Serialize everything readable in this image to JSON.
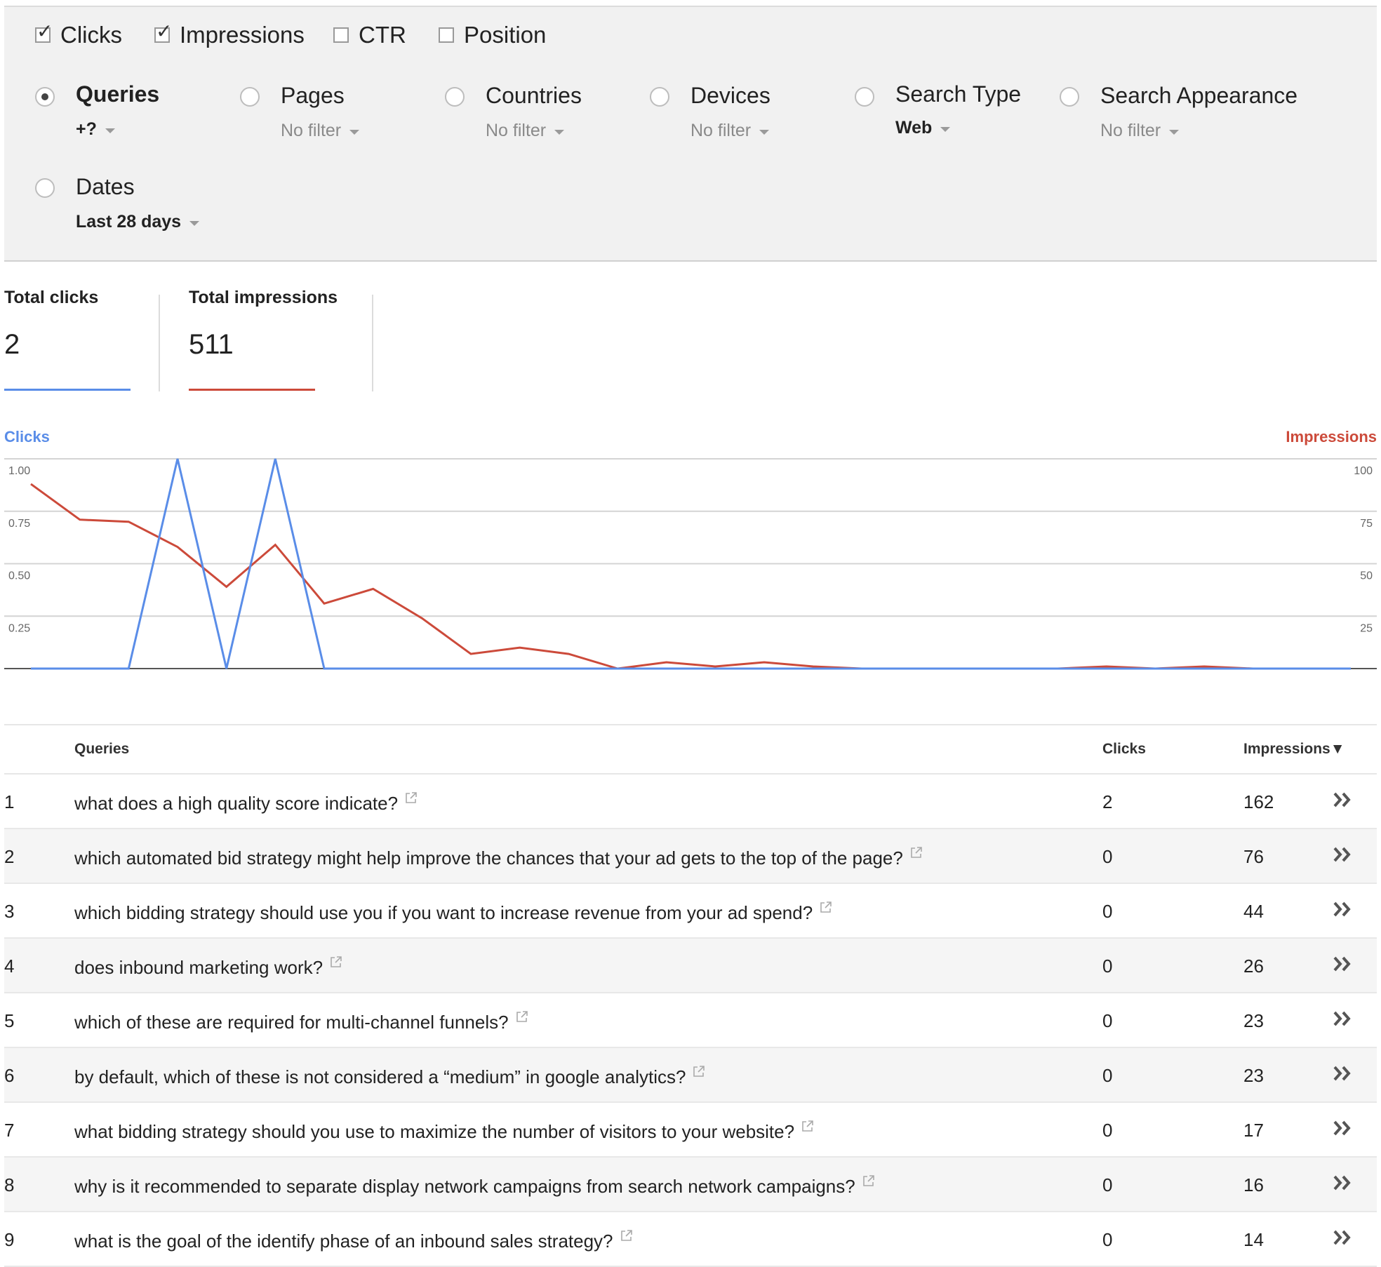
{
  "metrics": [
    {
      "label": "Clicks",
      "checked": true
    },
    {
      "label": "Impressions",
      "checked": true
    },
    {
      "label": "CTR",
      "checked": false
    },
    {
      "label": "Position",
      "checked": false
    }
  ],
  "dimensions": [
    {
      "label": "Queries",
      "filter": "+?",
      "selected": true
    },
    {
      "label": "Pages",
      "filter": "No filter",
      "selected": false
    },
    {
      "label": "Countries",
      "filter": "No filter",
      "selected": false
    },
    {
      "label": "Devices",
      "filter": "No filter",
      "selected": false
    },
    {
      "label": "Search Type",
      "filter": "Web",
      "selected": false
    },
    {
      "label": "Search Appearance",
      "filter": "No filter",
      "selected": false
    },
    {
      "label": "Dates",
      "filter": "Last 28 days",
      "selected": false
    }
  ],
  "totals": {
    "clicks_label": "Total clicks",
    "clicks_value": "2",
    "impressions_label": "Total impressions",
    "impressions_value": "511"
  },
  "colors": {
    "clicks": "#5a8de8",
    "impressions": "#cc4a3a"
  },
  "chart_data": {
    "type": "line",
    "x": [
      1,
      2,
      3,
      4,
      5,
      6,
      7,
      8,
      9,
      10,
      11,
      12,
      13,
      14,
      15,
      16,
      17,
      18,
      19,
      20,
      21,
      22,
      23,
      24,
      25,
      26,
      27,
      28
    ],
    "y_left_label": "Clicks",
    "y_right_label": "Impressions",
    "y_left_ticks": [
      "1.00",
      "0.75",
      "0.50",
      "0.25"
    ],
    "y_right_ticks": [
      "100",
      "75",
      "50",
      "25"
    ],
    "y_left_range": [
      0,
      1
    ],
    "y_right_range": [
      0,
      100
    ],
    "series": [
      {
        "name": "Clicks",
        "axis": "left",
        "values": [
          0,
          0,
          0,
          1,
          0,
          1,
          0,
          0,
          0,
          0,
          0,
          0,
          0,
          0,
          0,
          0,
          0,
          0,
          0,
          0,
          0,
          0,
          0,
          0,
          0,
          0,
          0,
          0
        ]
      },
      {
        "name": "Impressions",
        "axis": "right",
        "values": [
          88,
          71,
          70,
          58,
          39,
          59,
          31,
          38,
          24,
          7,
          10,
          7,
          0,
          3,
          1,
          3,
          1,
          0,
          0,
          0,
          0,
          0,
          1,
          0,
          1,
          0,
          0,
          0
        ]
      }
    ]
  },
  "table": {
    "headers": {
      "query": "Queries",
      "clicks": "Clicks",
      "impressions": "Impressions▼"
    },
    "rows": [
      {
        "idx": "1",
        "query": "what does a high quality score indicate?",
        "clicks": "2",
        "impressions": "162"
      },
      {
        "idx": "2",
        "query": "which automated bid strategy might help improve the chances that your ad gets to the top of the page?",
        "clicks": "0",
        "impressions": "76"
      },
      {
        "idx": "3",
        "query": "which bidding strategy should use you if you want to increase revenue from your ad spend?",
        "clicks": "0",
        "impressions": "44"
      },
      {
        "idx": "4",
        "query": "does inbound marketing work?",
        "clicks": "0",
        "impressions": "26"
      },
      {
        "idx": "5",
        "query": "which of these are required for multi-channel funnels?",
        "clicks": "0",
        "impressions": "23"
      },
      {
        "idx": "6",
        "query": "by default, which of these is not considered a “medium” in google analytics?",
        "clicks": "0",
        "impressions": "23"
      },
      {
        "idx": "7",
        "query": "what bidding strategy should you use to maximize the number of visitors to your website?",
        "clicks": "0",
        "impressions": "17"
      },
      {
        "idx": "8",
        "query": "why is it recommended to separate display network campaigns from search network campaigns?",
        "clicks": "0",
        "impressions": "16"
      },
      {
        "idx": "9",
        "query": "what is the goal of the identify phase of an inbound sales strategy?",
        "clicks": "0",
        "impressions": "14"
      }
    ]
  }
}
